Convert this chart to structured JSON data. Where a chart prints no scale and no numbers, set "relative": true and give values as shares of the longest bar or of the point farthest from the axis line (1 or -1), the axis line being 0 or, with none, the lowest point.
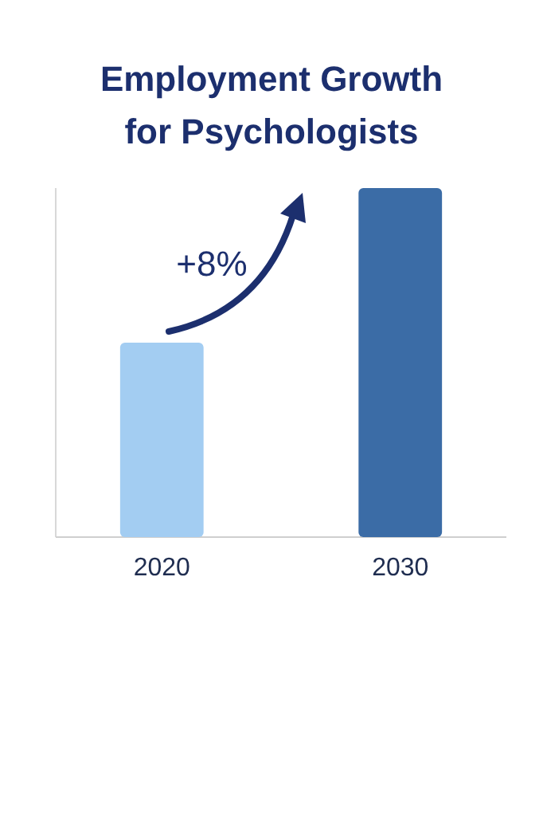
{
  "chart_data": {
    "type": "bar",
    "title": "Employment Growth for Psychologists",
    "categories": [
      "2020",
      "2030"
    ],
    "values": [
      0.557,
      1
    ],
    "colors": [
      "#a3cdf2",
      "#3b6ca6"
    ],
    "relative": true,
    "annotations": [
      "+8%"
    ]
  }
}
